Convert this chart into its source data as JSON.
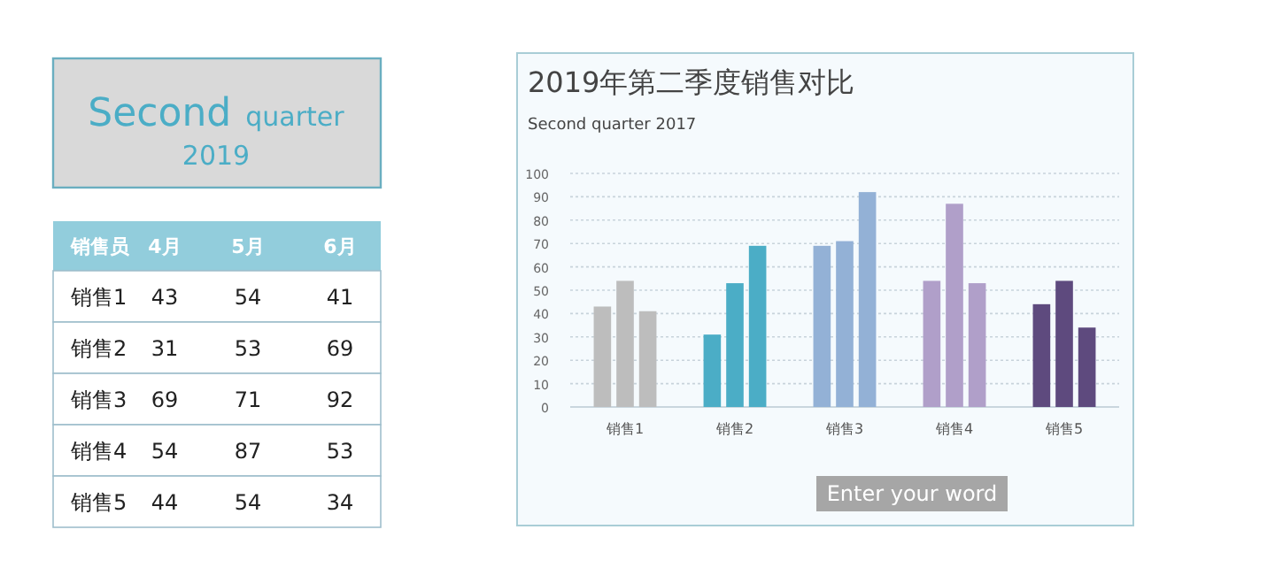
{
  "chart_data": [
    {
      "type": "other",
      "annotations": [
        "Second quarter",
        "2019"
      ]
    },
    {
      "type": "other",
      "data_labels": true,
      "annotations": [
        "销售员"
      ],
      "categories": [
        "销售1",
        "销售2",
        "销售3",
        "销售4",
        "销售5"
      ],
      "series": [
        {
          "name": "4月",
          "values": [
            43,
            31,
            69,
            54,
            44
          ]
        },
        {
          "name": "5月",
          "values": [
            54,
            53,
            71,
            87,
            54
          ]
        },
        {
          "name": "6月",
          "values": [
            41,
            69,
            92,
            53,
            34
          ]
        }
      ]
    },
    {
      "type": "bar",
      "title": "2019年第二季度销售对比",
      "subtitle": "Second quarter 2017",
      "categories": [
        "销售1",
        "销售2",
        "销售3",
        "销售4",
        "销售5"
      ],
      "series": [
        {
          "colors": [
            "#bdbdbd",
            "#4badc6",
            "#93b1d6",
            "#b09fc9",
            "#5e4a7e"
          ],
          "values": [
            43,
            31,
            69,
            54,
            44
          ]
        },
        {
          "colors": [
            "#bdbdbd",
            "#4badc6",
            "#93b1d6",
            "#b09fc9",
            "#5e4a7e"
          ],
          "values": [
            54,
            53,
            71,
            87,
            54
          ]
        },
        {
          "colors": [
            "#bdbdbd",
            "#4badc6",
            "#93b1d6",
            "#b09fc9",
            "#5e4a7e"
          ],
          "values": [
            41,
            69,
            92,
            53,
            34
          ]
        }
      ],
      "ylim": [
        0,
        100
      ],
      "yticks": [
        0,
        10,
        20,
        30,
        40,
        50,
        60,
        70,
        80,
        90,
        100
      ],
      "grid": "y",
      "annotations": [
        "Enter your word"
      ]
    }
  ]
}
